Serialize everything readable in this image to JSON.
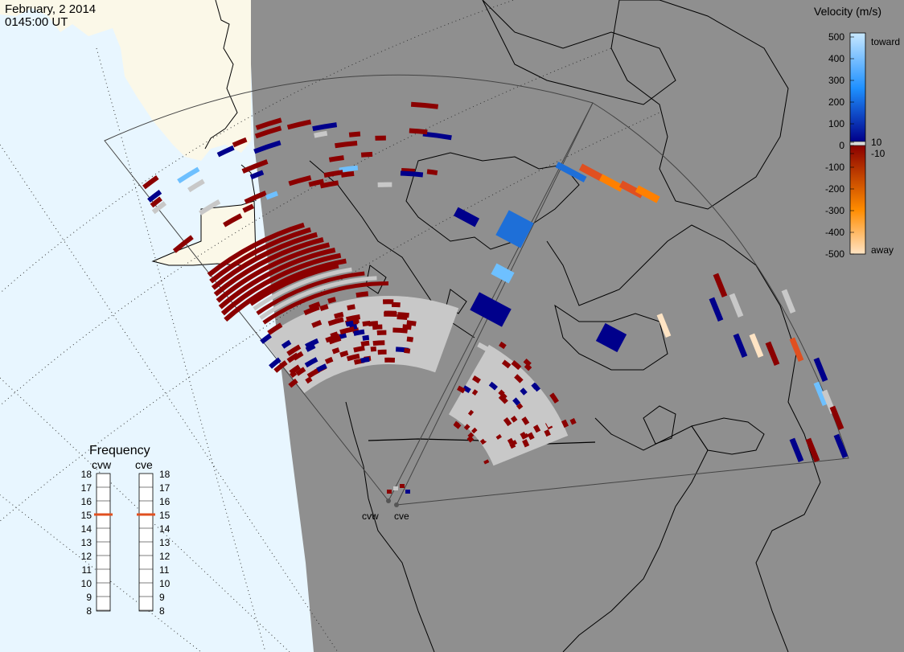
{
  "header": {
    "date": "February, 2 2014",
    "time": "0145:00 UT"
  },
  "colorbar": {
    "title": "Velocity (m/s)",
    "ticks": [
      "500",
      "400",
      "300",
      "200",
      "100",
      "10",
      "0",
      "-10",
      "-100",
      "-200",
      "-300",
      "-400",
      "-500"
    ],
    "toward_label": "toward",
    "away_label": "away",
    "colors": [
      "#c8e8ff",
      "#1e90ff",
      "#00008b",
      "#8b0000",
      "#ff8c00",
      "#ffe4c4"
    ]
  },
  "frequency_panel": {
    "title": "Frequency",
    "radars": [
      {
        "name": "cvw",
        "frequency_mhz": 15
      },
      {
        "name": "cve",
        "frequency_mhz": 15
      }
    ],
    "scale": [
      "18",
      "17",
      "16",
      "15",
      "14",
      "13",
      "12",
      "11",
      "10",
      "9",
      "8"
    ]
  },
  "radar_sites": [
    {
      "name": "cvw"
    },
    {
      "name": "cve"
    }
  ],
  "colors": {
    "land": "#8f8f8f",
    "ocean": "#e8f6ff",
    "sunlit_land": "#fbf8e8",
    "ground_scatter": "#c8c8c8",
    "frequency_marker": "#e05020"
  }
}
